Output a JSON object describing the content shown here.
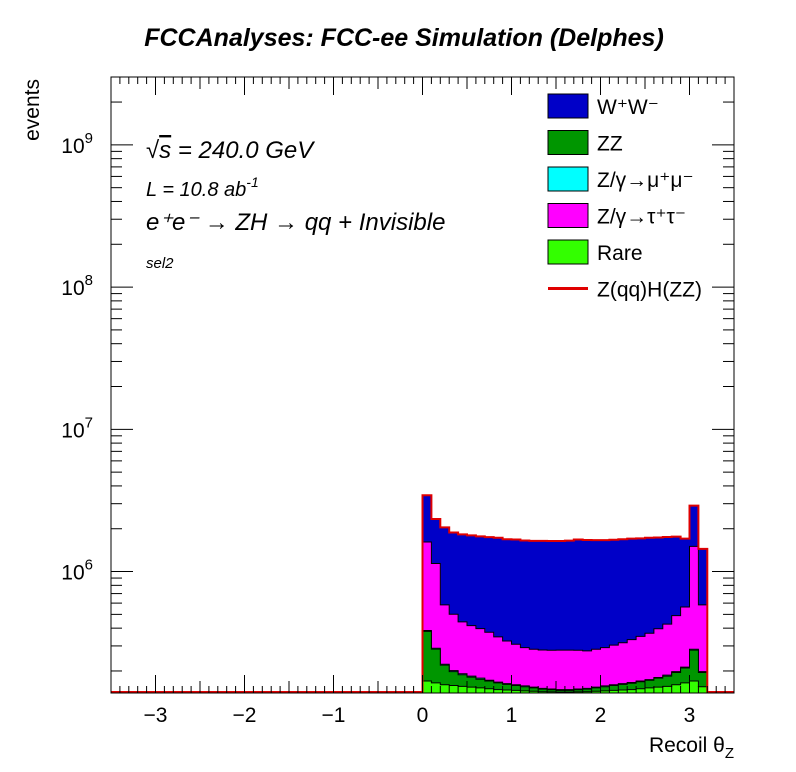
{
  "title": "FCCAnalyses: FCC-ee Simulation (Delphes)",
  "annotations": {
    "sqrt_s_symbol": "√",
    "sqrt_s_s": "s",
    "sqrt_s_rest": " = 240.0 GeV",
    "lumi_main": "L = 10.8 ab",
    "lumi_sup": "-1",
    "process": "e⁺e⁻ → ZH → qq + Invisible",
    "selection": "sel2"
  },
  "colors": {
    "WW": "#0000c8",
    "ZZ": "#009600",
    "Zmumu": "#00ffff",
    "Ztautau": "#ff00ff",
    "Rare": "#33ff00",
    "signal": "#e00000"
  },
  "legend": [
    {
      "id": "WW",
      "label": "W⁺W⁻",
      "style": "box"
    },
    {
      "id": "ZZ",
      "label": "ZZ",
      "style": "box"
    },
    {
      "id": "Zmumu",
      "label": "Z/γ→μ⁺μ⁻",
      "style": "box"
    },
    {
      "id": "Ztautau",
      "label": "Z/γ→τ⁺τ⁻",
      "style": "box"
    },
    {
      "id": "Rare",
      "label": "Rare",
      "style": "box"
    },
    {
      "id": "signal",
      "label": "Z(qq)H(ZZ)",
      "style": "line"
    }
  ],
  "chart_data": {
    "type": "bar",
    "stacked": true,
    "xlabel": "Recoil θ",
    "xlabel_sub": "Z",
    "ylabel": "events",
    "xlim": [
      -3.5,
      3.5
    ],
    "ylim": [
      140000,
      3000000000
    ],
    "yscale": "log",
    "xticks": [
      -3,
      -2,
      -1,
      0,
      1,
      2,
      3
    ],
    "xtick_labels": [
      "−3",
      "−2",
      "−1",
      "0",
      "1",
      "2",
      "3"
    ],
    "ytick_labels": [
      {
        "value": 1000000,
        "base": "10",
        "exp": "6"
      },
      {
        "value": 10000000,
        "base": "10",
        "exp": "7"
      },
      {
        "value": 100000000,
        "base": "10",
        "exp": "8"
      },
      {
        "value": 1000000000,
        "base": "10",
        "exp": "9"
      }
    ],
    "bin_width": 0.1,
    "x": [
      0.05,
      0.15,
      0.25,
      0.35,
      0.45,
      0.55,
      0.65,
      0.75,
      0.85,
      0.95,
      1.05,
      1.15,
      1.25,
      1.35,
      1.45,
      1.55,
      1.65,
      1.75,
      1.85,
      1.95,
      2.05,
      2.15,
      2.25,
      2.35,
      2.45,
      2.55,
      2.65,
      2.75,
      2.85,
      2.95,
      3.05,
      3.15
    ],
    "series": [
      {
        "name": "Rare",
        "values": [
          170000,
          165000,
          160000,
          158000,
          156000,
          154000,
          152000,
          150000,
          148000,
          147000,
          146000,
          145000,
          144000,
          143000,
          142500,
          142000,
          142000,
          142500,
          143000,
          144000,
          145000,
          146000,
          147000,
          148000,
          150000,
          152000,
          154000,
          156000,
          160000,
          165000,
          170000,
          155000
        ]
      },
      {
        "name": "ZZ",
        "values": [
          210000,
          120000,
          60000,
          40000,
          32000,
          27000,
          23000,
          20000,
          17000,
          14000,
          12000,
          10000,
          8000,
          6000,
          5000,
          4000,
          4000,
          5000,
          6000,
          8000,
          10000,
          12000,
          14000,
          16000,
          18000,
          20000,
          24000,
          28000,
          35000,
          45000,
          110000,
          40000
        ]
      },
      {
        "name": "Zmumu",
        "values": [
          5000,
          4000,
          3000,
          3000,
          3000,
          3000,
          3000,
          2000,
          2000,
          2000,
          2000,
          2000,
          2000,
          2000,
          2000,
          2000,
          2000,
          2000,
          2000,
          2000,
          2000,
          2000,
          2000,
          2000,
          2000,
          2000,
          2000,
          3000,
          3000,
          3000,
          4000,
          3000
        ]
      },
      {
        "name": "Z/γ→τ⁺τ⁻",
        "values": [
          1230000,
          850000,
          360000,
          300000,
          252000,
          233000,
          219000,
          202000,
          180000,
          162000,
          148000,
          135000,
          130000,
          130000,
          130000,
          132000,
          132000,
          130000,
          126000,
          130000,
          135000,
          144000,
          153000,
          166000,
          180000,
          194000,
          216000,
          240000,
          292000,
          350000,
          1220000,
          385000
        ]
      },
      {
        "name": "W⁺W⁻",
        "values": [
          1820000,
          1200000,
          1460000,
          1380000,
          1380000,
          1380000,
          1370000,
          1370000,
          1380000,
          1360000,
          1370000,
          1360000,
          1360000,
          1360000,
          1360000,
          1360000,
          1370000,
          1400000,
          1390000,
          1380000,
          1370000,
          1370000,
          1370000,
          1370000,
          1360000,
          1360000,
          1340000,
          1320000,
          1270000,
          1140000,
          1400000,
          860000
        ]
      }
    ],
    "signal": {
      "name": "Z(qq)H(ZZ)",
      "values": [
        3000,
        1500,
        1000,
        800,
        800,
        800,
        800,
        800,
        800,
        800,
        800,
        800,
        800,
        800,
        800,
        800,
        800,
        800,
        800,
        800,
        800,
        800,
        800,
        800,
        800,
        800,
        800,
        800,
        800,
        1000,
        2000,
        1000
      ]
    }
  }
}
